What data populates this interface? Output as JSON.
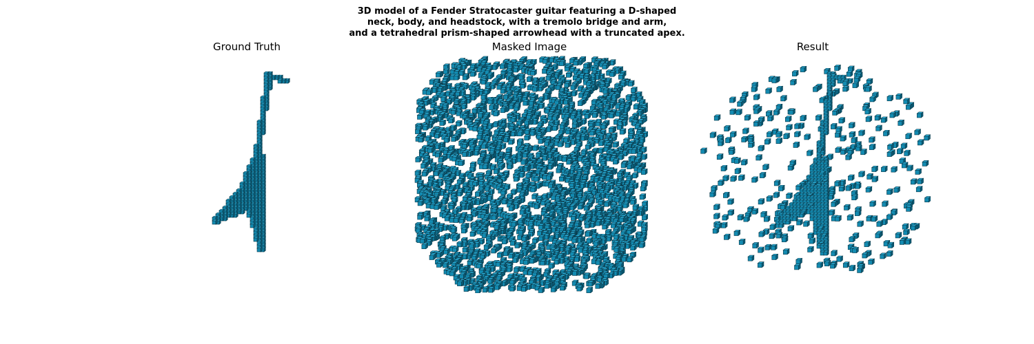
{
  "figure": {
    "title_lines": [
      "3D model of a Fender Stratocaster guitar featuring a D-shaped",
      "neck, body, and headstock, with a tremolo bridge and arm,",
      "and a tetrahedral prism-shaped arrowhead with a truncated apex."
    ],
    "panels": [
      {
        "title": "Ground Truth"
      },
      {
        "title": "Masked Image"
      },
      {
        "title": "Result"
      }
    ]
  },
  "colors": {
    "voxel_top": "#2ab2dd",
    "voxel_front": "#138bb1",
    "voxel_side": "#0a5d78",
    "voxel_edge": "#0b3a4a"
  }
}
